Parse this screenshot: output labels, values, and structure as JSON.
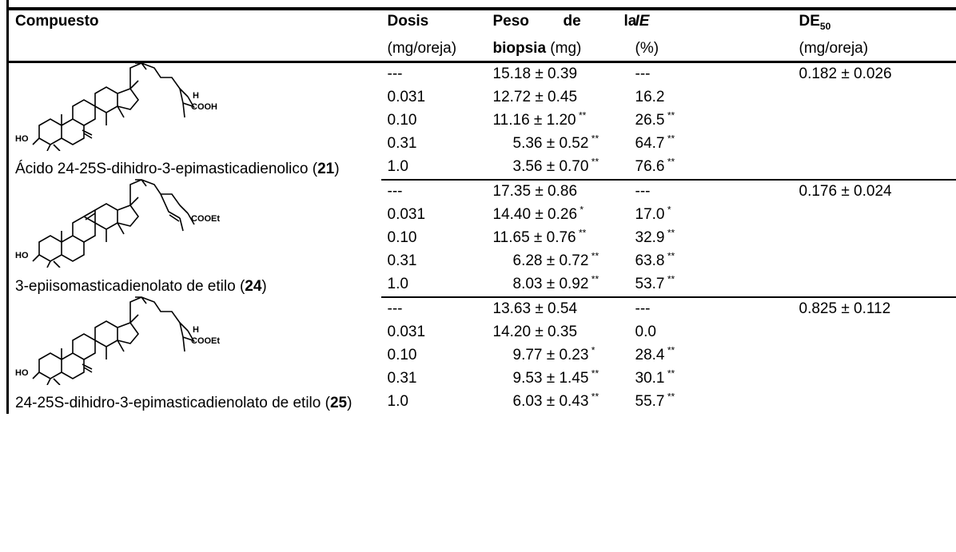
{
  "header": {
    "col_compound": "Compuesto",
    "col_dose": "Dosis",
    "col_dose_unit": "(mg/oreja)",
    "col_weight_a": "Peso",
    "col_weight_b": "de",
    "col_weight_c": "la",
    "col_weight_d": "biopsia",
    "col_weight_unit": "(mg)",
    "col_ie": "IE",
    "col_ie_unit": "(%)",
    "col_de_main": "DE",
    "col_de_sub": "50",
    "col_de_unit": "(mg/oreja)"
  },
  "groups": [
    {
      "structure_label": "COOH",
      "name_text": "Ácido 24-25S-dihidro-3-epimasticadienolico (",
      "name_ref": "21",
      "name_close": ")",
      "de50": "0.182 ± 0.026",
      "rows": [
        {
          "dose": "---",
          "weight": "15.18 ± 0.39",
          "weight_sig": "",
          "ie": "---",
          "ie_sig": ""
        },
        {
          "dose": "0.031",
          "weight": "12.72 ± 0.45",
          "weight_sig": "",
          "ie": "16.2",
          "ie_sig": ""
        },
        {
          "dose": "0.10",
          "weight": "11.16 ± 1.20",
          "weight_sig": "**",
          "ie": "26.5",
          "ie_sig": "**"
        },
        {
          "dose": "0.31",
          "weight": "5.36 ± 0.52",
          "weight_sig": "**",
          "ie": "64.7",
          "ie_sig": "**"
        },
        {
          "dose": "1.0",
          "weight": "3.56 ± 0.70",
          "weight_sig": "**",
          "ie": "76.6",
          "ie_sig": "**"
        }
      ]
    },
    {
      "structure_label": "COOEt",
      "name_text": "3-epiisomasticadienolato de etilo (",
      "name_ref": "24",
      "name_close": ")",
      "de50": "0.176 ± 0.024",
      "rows": [
        {
          "dose": "---",
          "weight": "17.35 ± 0.86",
          "weight_sig": "",
          "ie": "---",
          "ie_sig": ""
        },
        {
          "dose": "0.031",
          "weight": "14.40 ± 0.26",
          "weight_sig": "*",
          "ie": "17.0",
          "ie_sig": "*"
        },
        {
          "dose": "0.10",
          "weight": "11.65 ± 0.76",
          "weight_sig": "**",
          "ie": "32.9",
          "ie_sig": "**"
        },
        {
          "dose": "0.31",
          "weight": "6.28 ± 0.72",
          "weight_sig": "**",
          "ie": "63.8",
          "ie_sig": "**"
        },
        {
          "dose": "1.0",
          "weight": "8.03 ± 0.92",
          "weight_sig": "**",
          "ie": "53.7",
          "ie_sig": "**"
        }
      ]
    },
    {
      "structure_label": "COOEt",
      "name_text": "24-25S-dihidro-3-epimasticadienolato de etilo (",
      "name_ref": "25",
      "name_close": ")",
      "de50": "0.825 ± 0.112",
      "rows": [
        {
          "dose": "---",
          "weight": "13.63 ± 0.54",
          "weight_sig": "",
          "ie": "---",
          "ie_sig": ""
        },
        {
          "dose": "0.031",
          "weight": "14.20 ± 0.35",
          "weight_sig": "",
          "ie": "0.0",
          "ie_sig": ""
        },
        {
          "dose": "0.10",
          "weight": "9.77 ± 0.23",
          "weight_sig": "*",
          "ie": "28.4",
          "ie_sig": "**"
        },
        {
          "dose": "0.31",
          "weight": "9.53 ± 1.45",
          "weight_sig": "**",
          "ie": "30.1",
          "ie_sig": "**"
        },
        {
          "dose": "1.0",
          "weight": "6.03 ± 0.43",
          "weight_sig": "**",
          "ie": "55.7",
          "ie_sig": "**"
        }
      ]
    }
  ],
  "structure_ho_label": "HO",
  "structure_h_label": "H"
}
